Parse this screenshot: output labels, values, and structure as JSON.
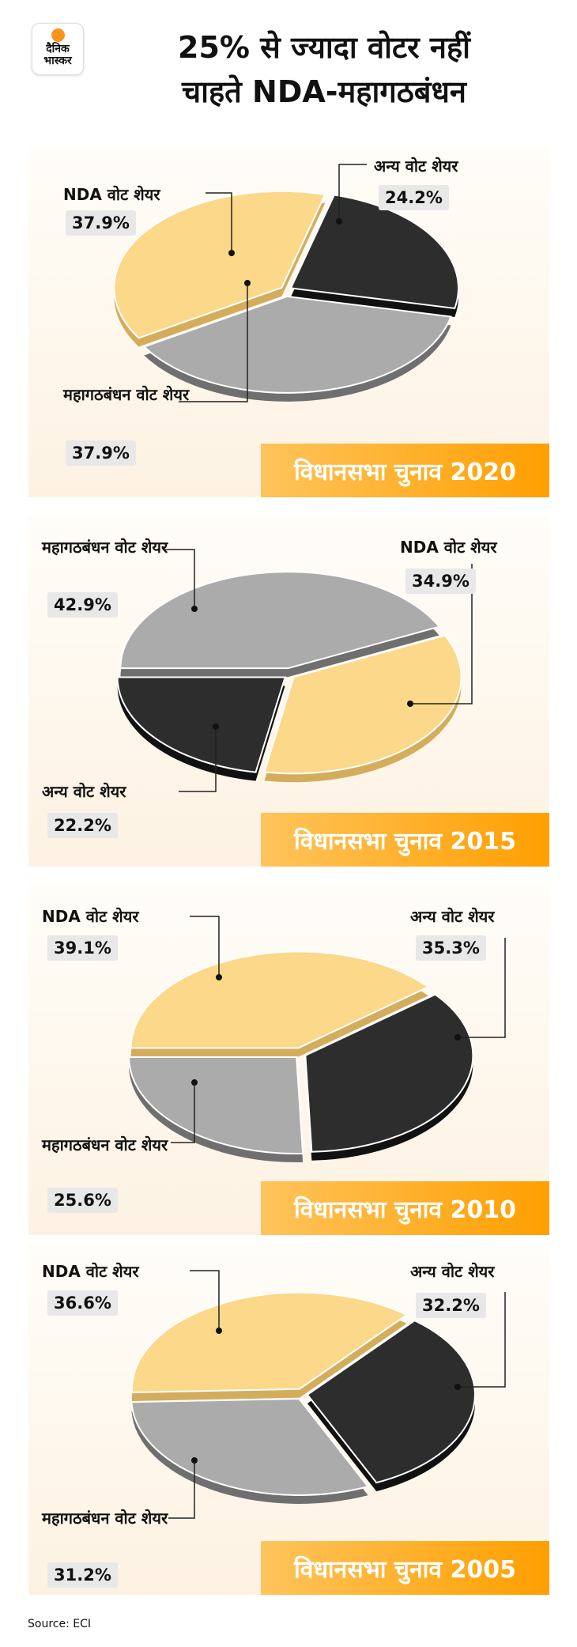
{
  "header": {
    "logo_text": "दैनिक भास्कर",
    "title_line1": "25% से ज्यादा वोटर नहीं",
    "title_line2": "चाहते NDA-महागठबंधन"
  },
  "colors": {
    "nda": "#fbd88a",
    "mgb": "#ababab",
    "other": "#2d2d2d",
    "banner": "#ffa000"
  },
  "chart_data": [
    {
      "type": "pie",
      "title": "विधानसभा चुनाव 2020",
      "slices": {
        "nda": {
          "label": "NDA वोट शेयर",
          "value": 37.9,
          "display": "37.9%"
        },
        "mgb": {
          "label": "महागठबंधन वोट शेयर",
          "value": 37.9,
          "display": "37.9%"
        },
        "other": {
          "label": "अन्य वोट शेयर",
          "value": 24.2,
          "display": "24.2%"
        }
      }
    },
    {
      "type": "pie",
      "title": "विधानसभा चुनाव 2015",
      "slices": {
        "nda": {
          "label": "NDA वोट शेयर",
          "value": 34.9,
          "display": "34.9%"
        },
        "mgb": {
          "label": "महागठबंधन वोट शेयर",
          "value": 42.9,
          "display": "42.9%"
        },
        "other": {
          "label": "अन्य वोट शेयर",
          "value": 22.2,
          "display": "22.2%"
        }
      }
    },
    {
      "type": "pie",
      "title": "विधानसभा चुनाव 2010",
      "slices": {
        "nda": {
          "label": "NDA वोट शेयर",
          "value": 39.1,
          "display": "39.1%"
        },
        "mgb": {
          "label": "महागठबंधन वोट शेयर",
          "value": 25.6,
          "display": "25.6%"
        },
        "other": {
          "label": "अन्य वोट शेयर",
          "value": 35.3,
          "display": "35.3%"
        }
      }
    },
    {
      "type": "pie",
      "title": "विधानसभा चुनाव 2005",
      "slices": {
        "nda": {
          "label": "NDA वोट शेयर",
          "value": 36.6,
          "display": "36.6%"
        },
        "mgb": {
          "label": "महागठबंधन वोट शेयर",
          "value": 31.2,
          "display": "31.2%"
        },
        "other": {
          "label": "अन्य वोट शेयर",
          "value": 32.2,
          "display": "32.2%"
        }
      }
    }
  ],
  "footer": {
    "source": "Source: ECI"
  }
}
